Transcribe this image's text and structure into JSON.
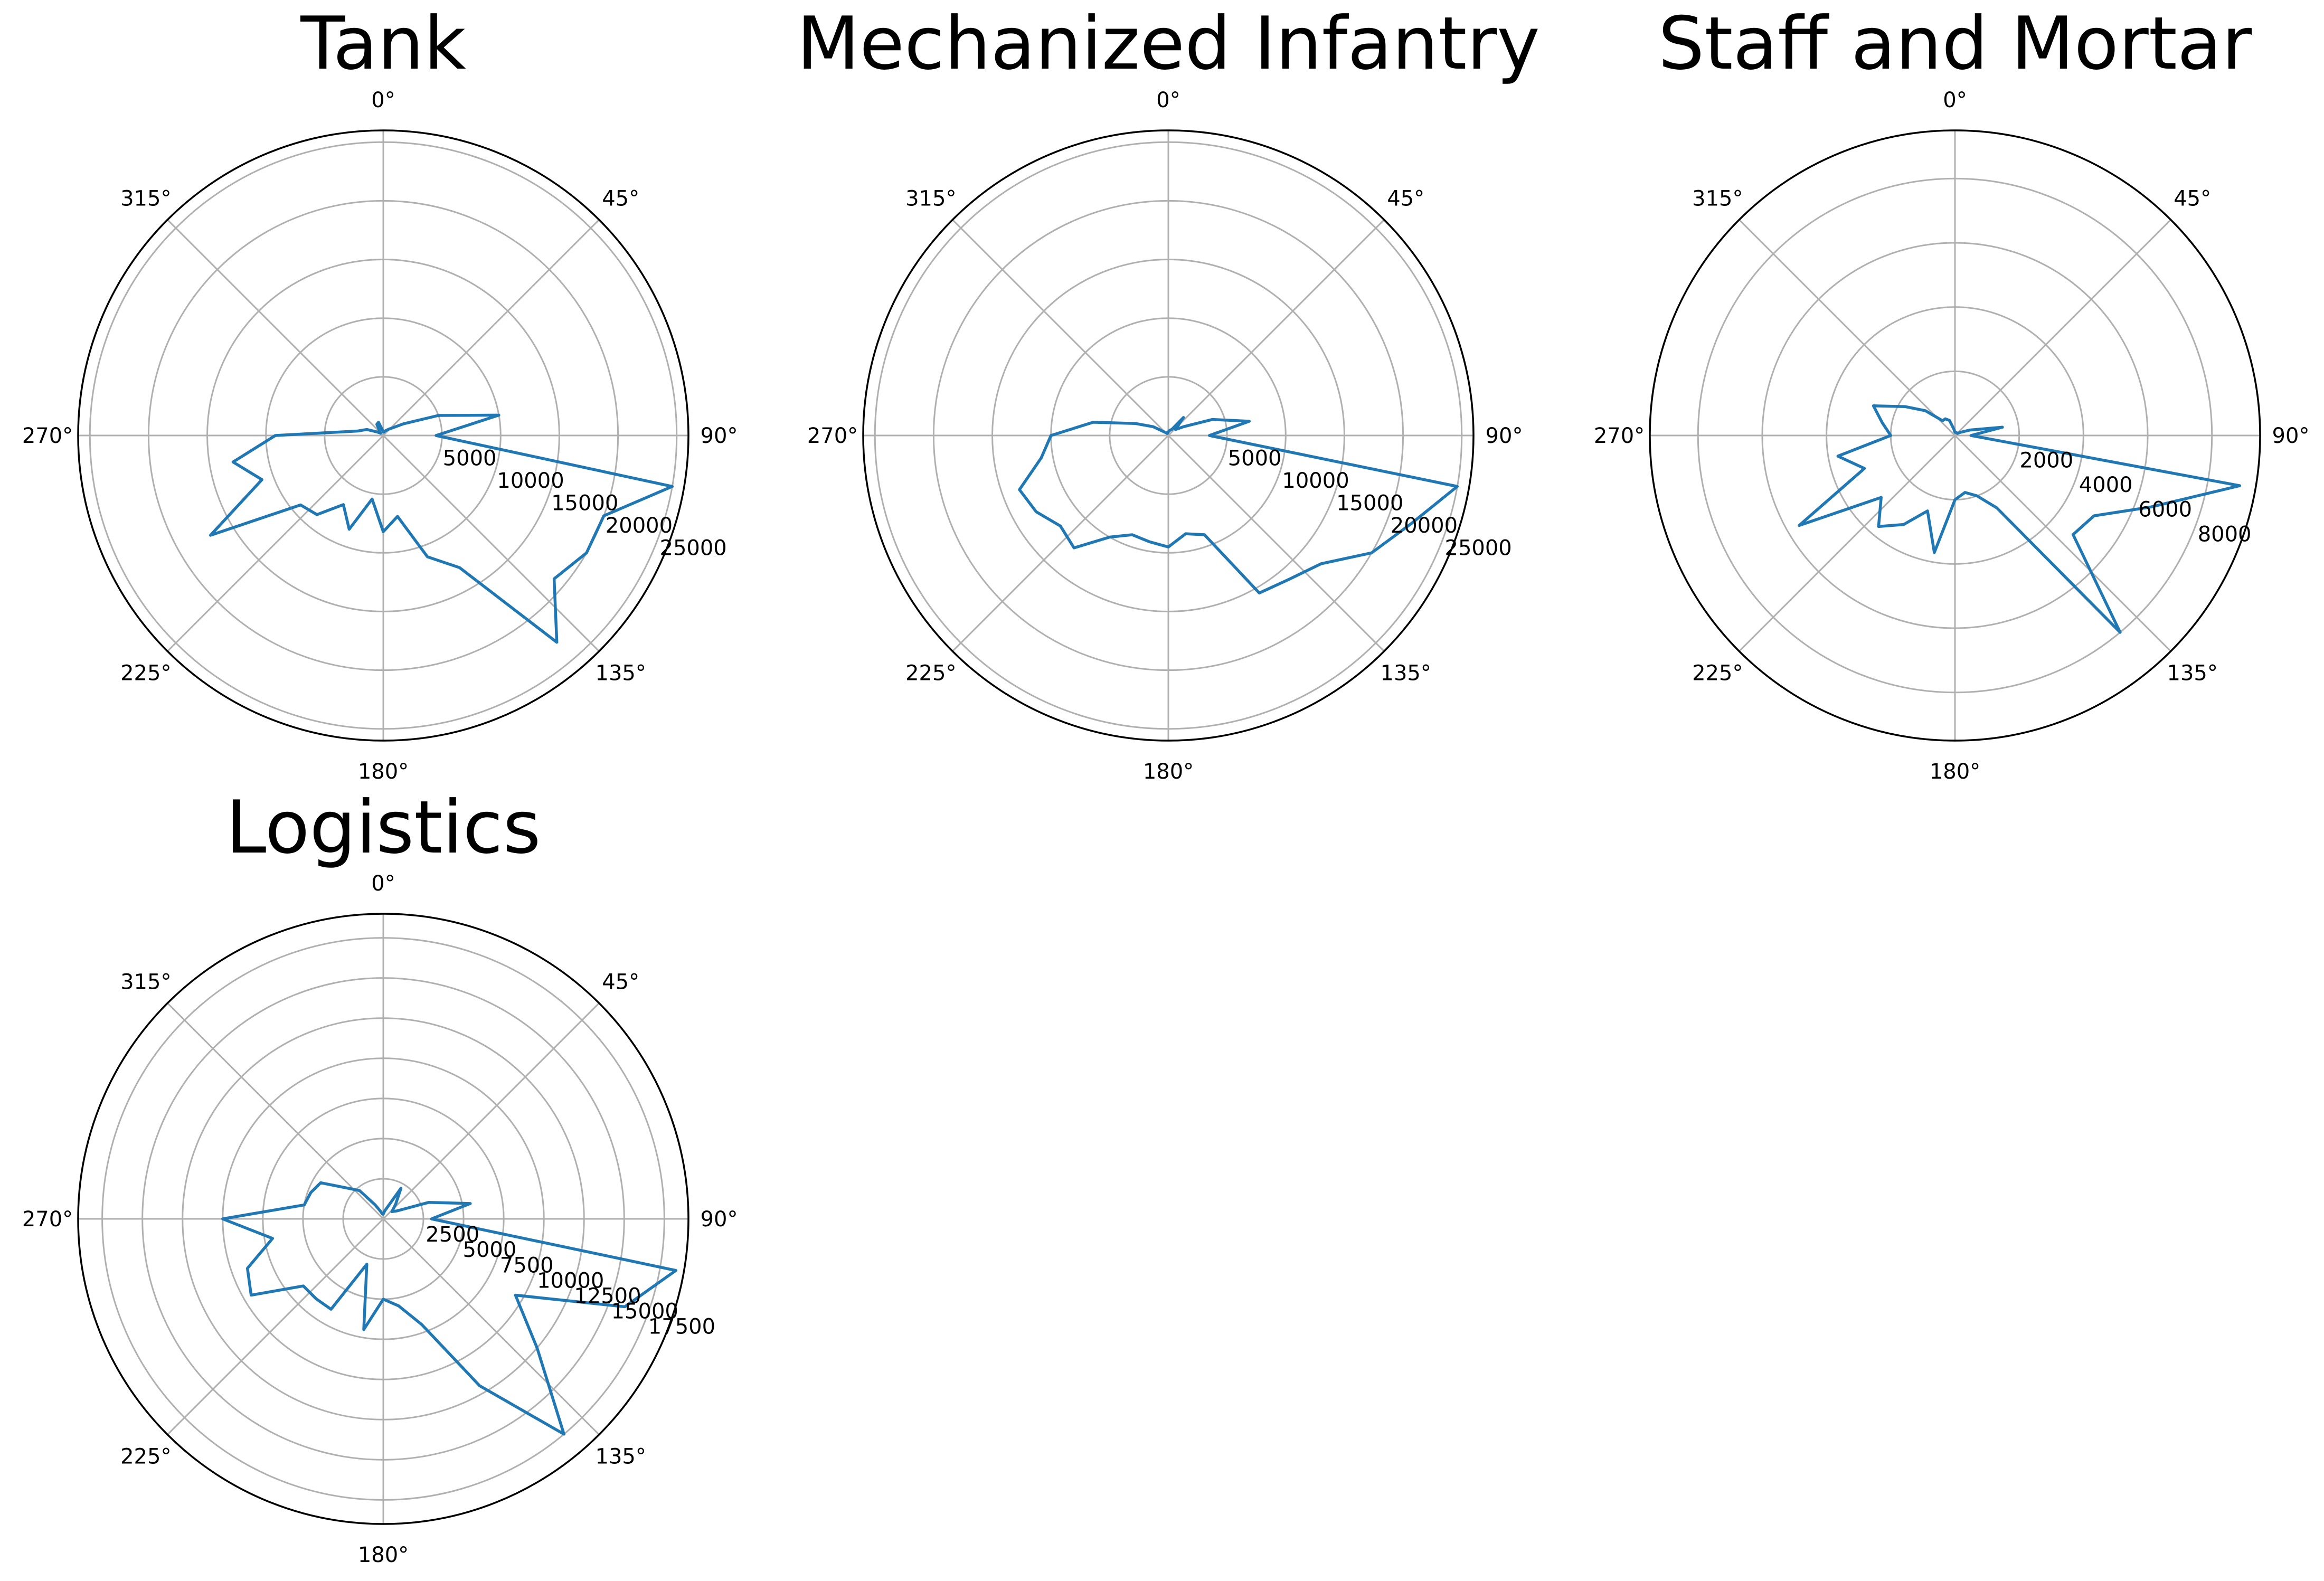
{
  "colors": {
    "series": "#1f77b4",
    "grid": "#b0b0b0",
    "frame": "#000000"
  },
  "chart_data": [
    {
      "type": "line",
      "polar": true,
      "title": "Tank",
      "angle_ticks": [
        "0°",
        "45°",
        "90°",
        "135°",
        "180°",
        "225°",
        "270°",
        "315°"
      ],
      "r_ticks": [
        5000,
        10000,
        15000,
        20000,
        25000
      ],
      "r_tick_labels": [
        "5000",
        "10000",
        "15000",
        "20000",
        "25000"
      ],
      "rlim": [
        0,
        26000
      ],
      "grid": true,
      "series": [
        {
          "theta_deg": [
            0,
            10,
            20,
            30,
            40,
            50,
            60,
            70,
            80,
            90,
            100,
            110,
            120,
            130,
            140,
            150,
            160,
            170,
            180,
            190,
            200,
            210,
            220,
            230,
            240,
            250,
            260,
            270,
            280,
            290,
            300,
            310,
            320,
            330,
            340,
            350,
            360
          ],
          "r": [
            300,
            300,
            400,
            500,
            700,
            1000,
            2000,
            5000,
            10000,
            4500,
            25000,
            20000,
            20000,
            19000,
            23000,
            13000,
            11000,
            7000,
            8200,
            5500,
            8500,
            6800,
            8800,
            9200,
            17000,
            11000,
            13000,
            9200,
            2200,
            1500,
            600,
            300,
            500,
            1100,
            1200,
            500,
            300
          ]
        }
      ]
    },
    {
      "type": "line",
      "polar": true,
      "title": "Mechanized Infantry",
      "angle_ticks": [
        "0°",
        "45°",
        "90°",
        "135°",
        "180°",
        "225°",
        "270°",
        "315°"
      ],
      "r_ticks": [
        5000,
        10000,
        15000,
        20000,
        25000
      ],
      "r_tick_labels": [
        "5000",
        "10000",
        "15000",
        "20000",
        "25000"
      ],
      "rlim": [
        0,
        26000
      ],
      "grid": true,
      "series": [
        {
          "theta_deg": [
            0,
            10,
            20,
            30,
            40,
            50,
            60,
            70,
            80,
            90,
            100,
            110,
            120,
            130,
            140,
            150,
            160,
            170,
            180,
            190,
            200,
            210,
            220,
            230,
            240,
            250,
            260,
            270,
            280,
            290,
            300,
            310,
            320,
            330,
            340,
            350,
            360
          ],
          "r": [
            300,
            400,
            500,
            600,
            2000,
            800,
            1500,
            4000,
            7000,
            3500,
            25000,
            22000,
            20000,
            17000,
            16000,
            15500,
            9000,
            8500,
            9500,
            9200,
            9000,
            10000,
            12500,
            12000,
            13000,
            13500,
            11000,
            10000,
            6500,
            3000,
            1500,
            500,
            300,
            200,
            200,
            300,
            300
          ]
        }
      ]
    },
    {
      "type": "line",
      "polar": true,
      "title": "Staff and Mortar",
      "angle_ticks": [
        "0°",
        "45°",
        "90°",
        "135°",
        "180°",
        "225°",
        "270°",
        "315°"
      ],
      "r_ticks": [
        2000,
        4000,
        6000,
        8000
      ],
      "r_tick_labels": [
        "2000",
        "4000",
        "6000",
        "8000"
      ],
      "rlim": [
        0,
        9500
      ],
      "grid": true,
      "series": [
        {
          "theta_deg": [
            0,
            10,
            20,
            30,
            40,
            50,
            60,
            70,
            80,
            90,
            100,
            110,
            120,
            130,
            140,
            150,
            160,
            170,
            180,
            190,
            200,
            210,
            220,
            230,
            240,
            250,
            260,
            270,
            280,
            290,
            300,
            310,
            320,
            330,
            340,
            350,
            360
          ],
          "r": [
            100,
            100,
            100,
            100,
            100,
            100,
            200,
            500,
            1500,
            500,
            9000,
            6500,
            5000,
            4800,
            8000,
            2600,
            2000,
            1800,
            2000,
            3700,
            2500,
            3200,
            3700,
            3000,
            5600,
            3000,
            3700,
            2000,
            2300,
            2700,
            1800,
            1200,
            600,
            600,
            500,
            200,
            100
          ]
        }
      ]
    },
    {
      "type": "line",
      "polar": true,
      "title": "Logistics",
      "angle_ticks": [
        "0°",
        "45°",
        "90°",
        "135°",
        "180°",
        "225°",
        "270°",
        "315°"
      ],
      "r_ticks": [
        2500,
        5000,
        7500,
        10000,
        12500,
        15000,
        17500
      ],
      "r_tick_labels": [
        "2500",
        "5000",
        "7500",
        "10000",
        "12500",
        "15000",
        "17500"
      ],
      "rlim": [
        0,
        19000
      ],
      "grid": true,
      "series": [
        {
          "theta_deg": [
            0,
            10,
            20,
            30,
            40,
            50,
            60,
            70,
            80,
            90,
            100,
            110,
            120,
            130,
            140,
            150,
            160,
            170,
            180,
            190,
            200,
            210,
            220,
            230,
            240,
            250,
            260,
            270,
            280,
            290,
            300,
            310,
            320,
            330,
            340,
            350,
            360
          ],
          "r": [
            300,
            500,
            800,
            2200,
            1200,
            700,
            1000,
            3000,
            5500,
            3000,
            18500,
            16000,
            9500,
            12500,
            17500,
            12000,
            7000,
            5500,
            5000,
            7000,
            3000,
            6500,
            6500,
            6500,
            9500,
            9000,
            7000,
            10000,
            5000,
            4800,
            4500,
            3000,
            2300,
            1000,
            500,
            300,
            300
          ]
        }
      ]
    }
  ]
}
